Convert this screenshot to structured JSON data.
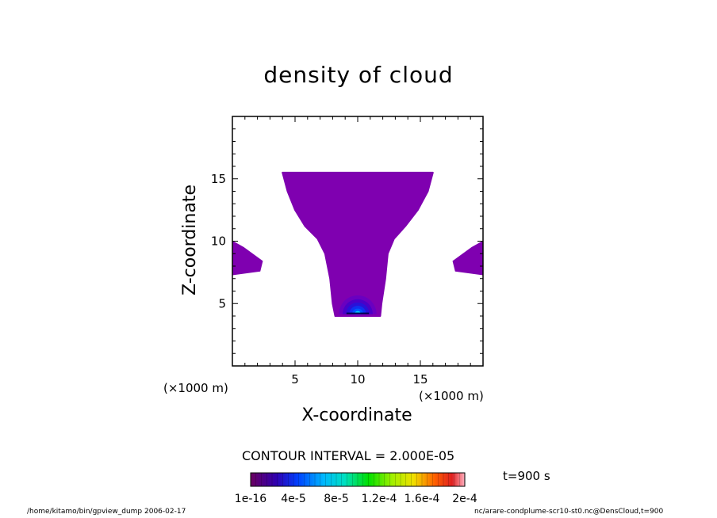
{
  "chart_data": {
    "type": "heatmap",
    "title": "density of cloud",
    "xlabel": "X-coordinate",
    "ylabel": "Z-coordinate",
    "x_unit": "(×1000 m)",
    "xlim": [
      0,
      20
    ],
    "ylim": [
      0,
      20
    ],
    "x_ticks": [
      5,
      10,
      15
    ],
    "y_ticks": [
      5,
      10,
      15
    ],
    "grid": false,
    "contour_interval": "CONTOUR INTERVAL = 2.000E-05",
    "colorbar": {
      "labels": [
        "1e-16",
        "4e-5",
        "8e-5",
        "1.2e-4",
        "1.6e-4",
        "2e-4"
      ],
      "values": [
        1e-16,
        4e-05,
        8e-05,
        0.00012,
        0.00016,
        0.0002
      ]
    },
    "time": "t=900 s",
    "cloud_outline": [
      [
        4.0,
        15.5
      ],
      [
        16.0,
        15.5
      ],
      [
        15.6,
        14.0
      ],
      [
        14.8,
        12.5
      ],
      [
        13.8,
        11.2
      ],
      [
        12.9,
        10.2
      ],
      [
        12.4,
        9.0
      ],
      [
        12.2,
        7.0
      ],
      [
        11.9,
        5.0
      ],
      [
        11.8,
        4.0
      ],
      [
        8.2,
        4.0
      ],
      [
        8.0,
        5.0
      ],
      [
        7.8,
        7.0
      ],
      [
        7.4,
        9.0
      ],
      [
        6.8,
        10.2
      ],
      [
        5.8,
        11.2
      ],
      [
        5.0,
        12.5
      ],
      [
        4.4,
        14.0
      ]
    ],
    "edge_patches": [
      {
        "side": "left",
        "points": [
          [
            0,
            8.0
          ],
          [
            0,
            10.0
          ],
          [
            0.9,
            9.5
          ],
          [
            2.4,
            8.4
          ],
          [
            2.2,
            7.6
          ],
          [
            0,
            7.3
          ]
        ]
      },
      {
        "side": "right",
        "points": [
          [
            20,
            8.0
          ],
          [
            20,
            10.0
          ],
          [
            19.1,
            9.5
          ],
          [
            17.6,
            8.4
          ],
          [
            17.8,
            7.6
          ],
          [
            20,
            7.3
          ]
        ]
      }
    ],
    "core": {
      "x_center": 10.0,
      "z_base": 4.15,
      "x_halfwidth": 1.5,
      "z_height": 1.5
    },
    "colors": {
      "low": "#7f00b0",
      "mid": "#3a00d0",
      "high": "#0055ff",
      "peak": "#00c8ff"
    }
  },
  "footer": {
    "left": "/home/kitamo/bin/gpview_dump  2006-02-17",
    "right": "nc/arare-condplume-scr10-st0.nc@DensCloud,t=900"
  }
}
